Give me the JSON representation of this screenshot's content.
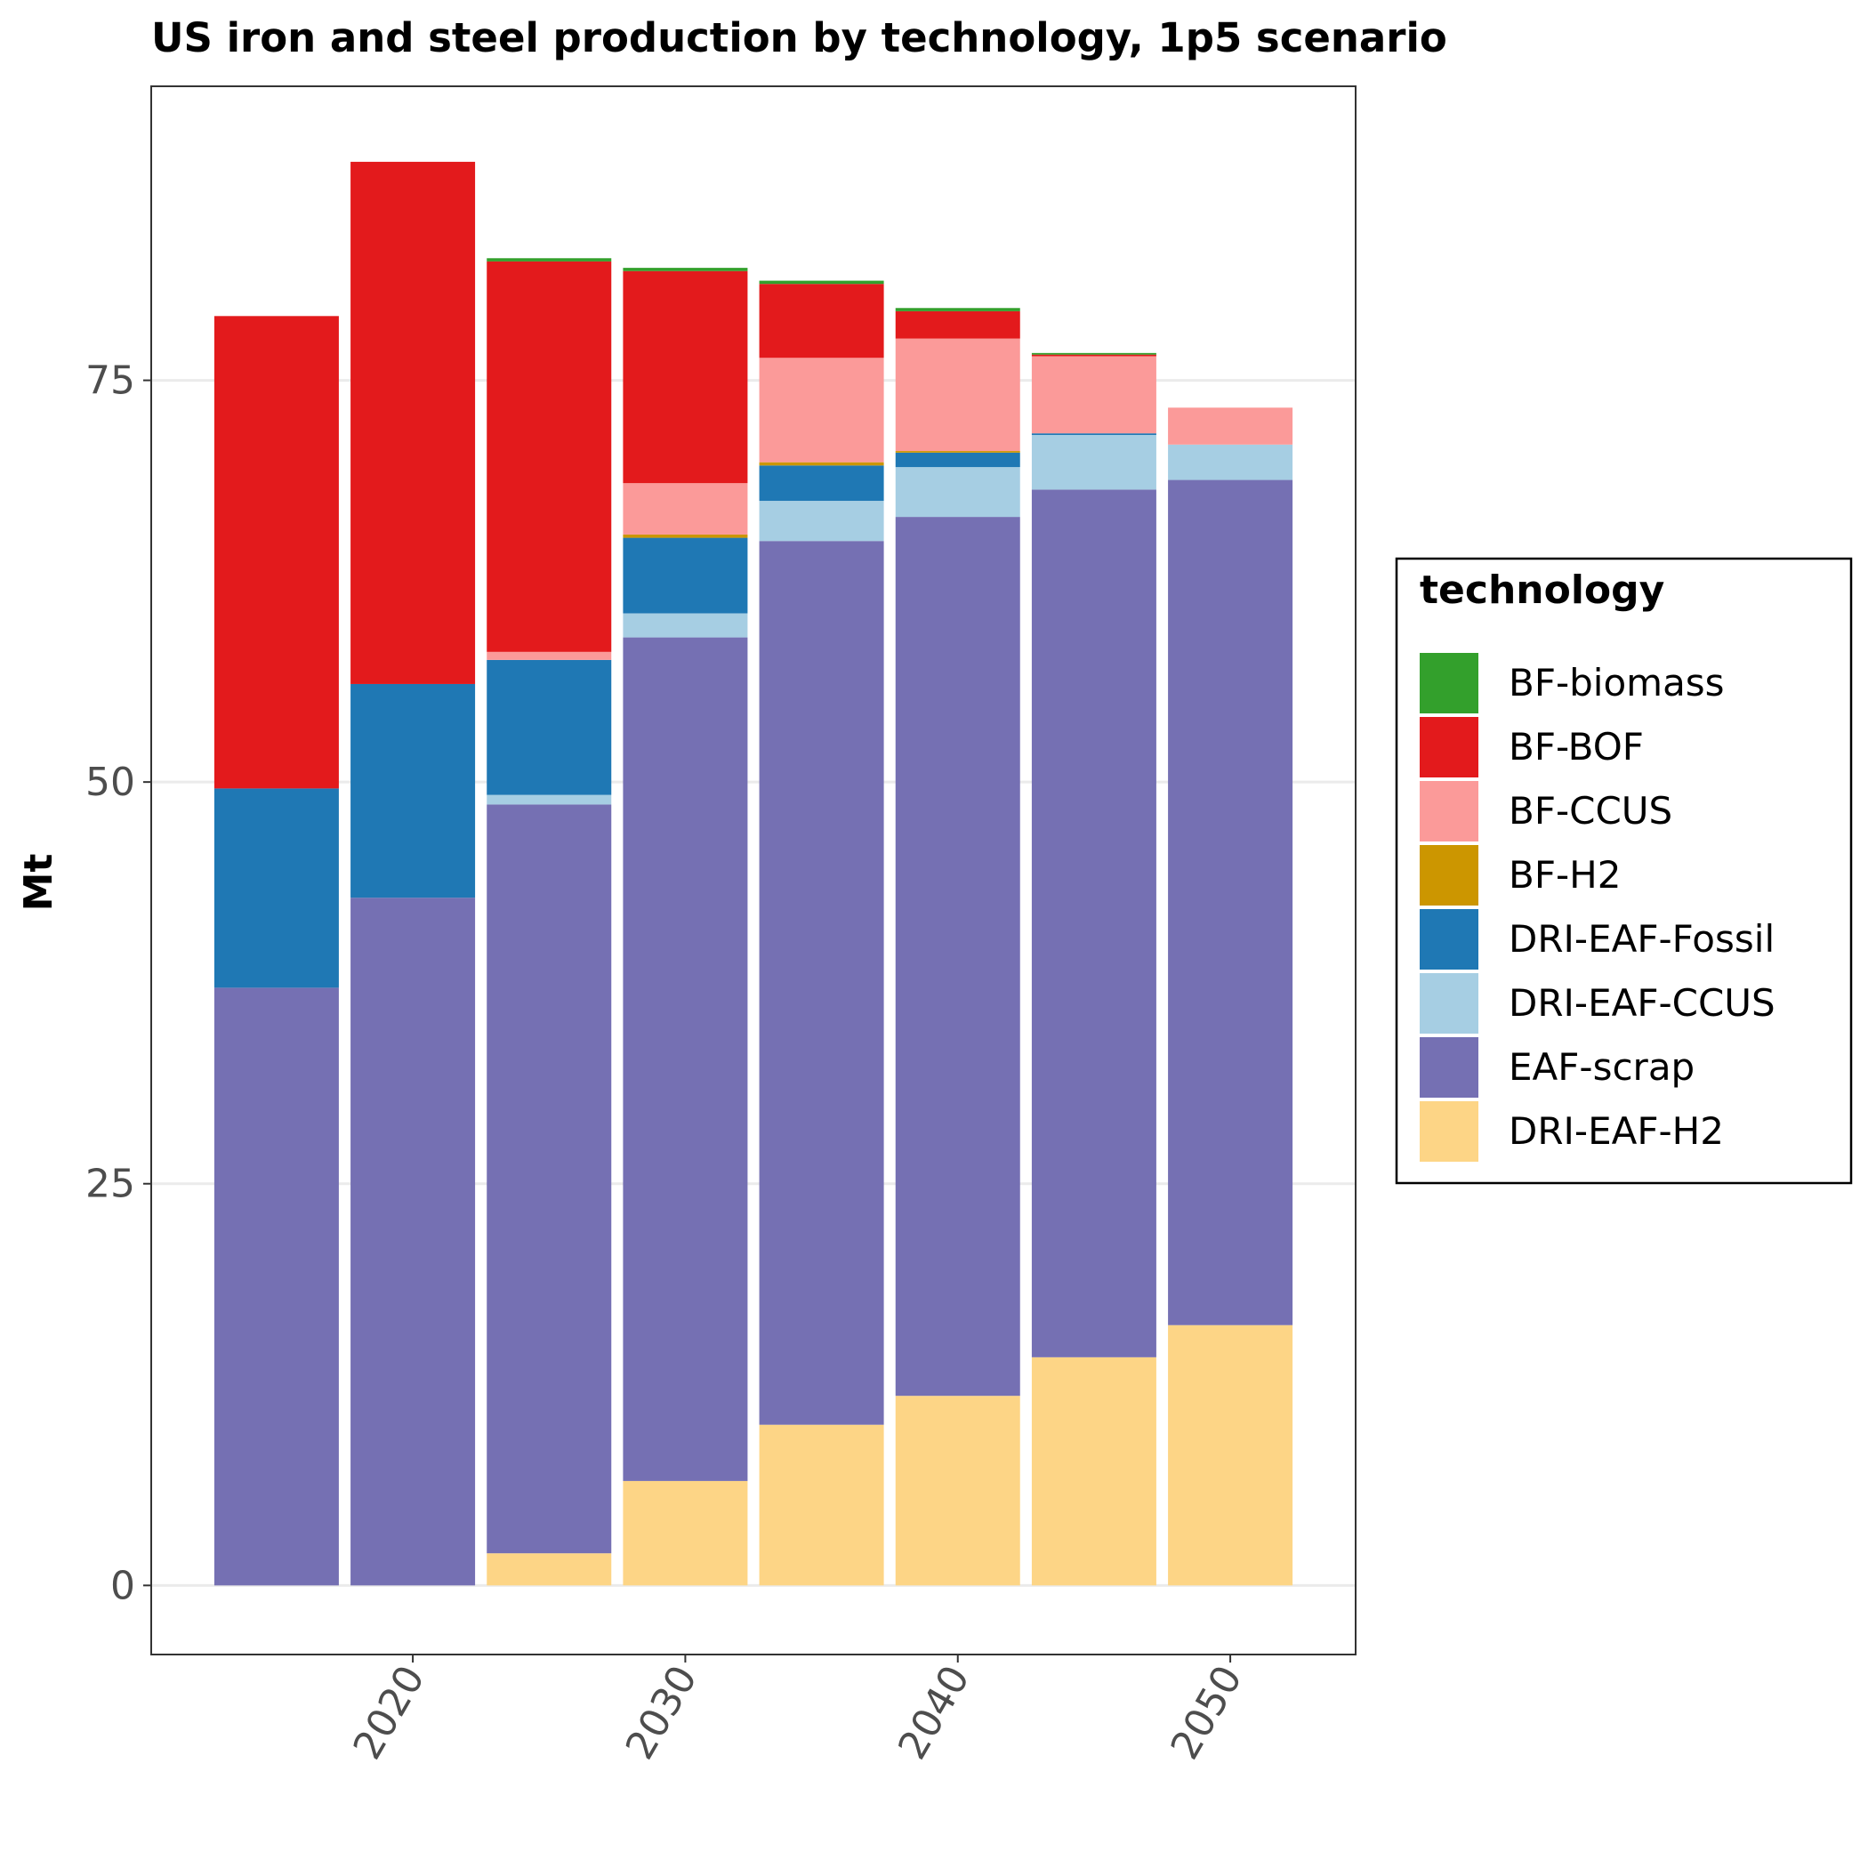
{
  "chart_data": {
    "type": "bar",
    "stacked": true,
    "title": "US iron and steel production by technology, 1p5 scenario",
    "xlabel": "",
    "ylabel": "Mt",
    "x": [
      2015,
      2020,
      2025,
      2030,
      2035,
      2040,
      2045,
      2050
    ],
    "x_ticks": [
      2020,
      2030,
      2040,
      2050
    ],
    "x_tick_labels": [
      "2020",
      "2030",
      "2040",
      "2050"
    ],
    "xlim": [
      2010.4,
      2054.6
    ],
    "ylim": [
      -4.3,
      93.3
    ],
    "y_ticks": [
      0,
      25,
      50,
      75
    ],
    "y_tick_labels": [
      "0",
      "25",
      "50",
      "75"
    ],
    "grid": true,
    "legend_position": "right",
    "legend_title": "technology",
    "series": [
      {
        "name": "DRI-EAF-H2",
        "color": "#fdd586",
        "values": [
          0,
          0,
          2.0,
          6.5,
          10.0,
          11.8,
          14.2,
          16.2
        ]
      },
      {
        "name": "EAF-scrap",
        "color": "#7570b3",
        "values": [
          37.2,
          42.8,
          46.6,
          52.5,
          55.0,
          54.7,
          54.0,
          52.6
        ]
      },
      {
        "name": "DRI-EAF-CCUS",
        "color": "#a6cee3",
        "values": [
          0,
          0,
          0.6,
          1.5,
          2.5,
          3.1,
          3.4,
          2.2
        ]
      },
      {
        "name": "DRI-EAF-Fossil",
        "color": "#1f78b4",
        "values": [
          12.4,
          13.3,
          8.4,
          4.7,
          2.2,
          0.9,
          0.1,
          0
        ]
      },
      {
        "name": "BF-H2",
        "color": "#cc9600",
        "values": [
          0,
          0,
          0,
          0.2,
          0.2,
          0.1,
          0,
          0
        ]
      },
      {
        "name": "BF-CCUS",
        "color": "#fb9a99",
        "values": [
          0,
          0,
          0.5,
          3.2,
          6.5,
          7.0,
          4.8,
          2.3
        ]
      },
      {
        "name": "BF-BOF",
        "color": "#e31a1c",
        "values": [
          29.4,
          32.5,
          24.3,
          13.2,
          4.6,
          1.7,
          0.1,
          0
        ]
      },
      {
        "name": "BF-biomass",
        "color": "#33a02c",
        "values": [
          0,
          0,
          0.2,
          0.2,
          0.2,
          0.2,
          0.1,
          0
        ]
      }
    ],
    "legend_order": [
      "BF-biomass",
      "BF-BOF",
      "BF-CCUS",
      "BF-H2",
      "DRI-EAF-Fossil",
      "DRI-EAF-CCUS",
      "EAF-scrap",
      "DRI-EAF-H2"
    ]
  }
}
